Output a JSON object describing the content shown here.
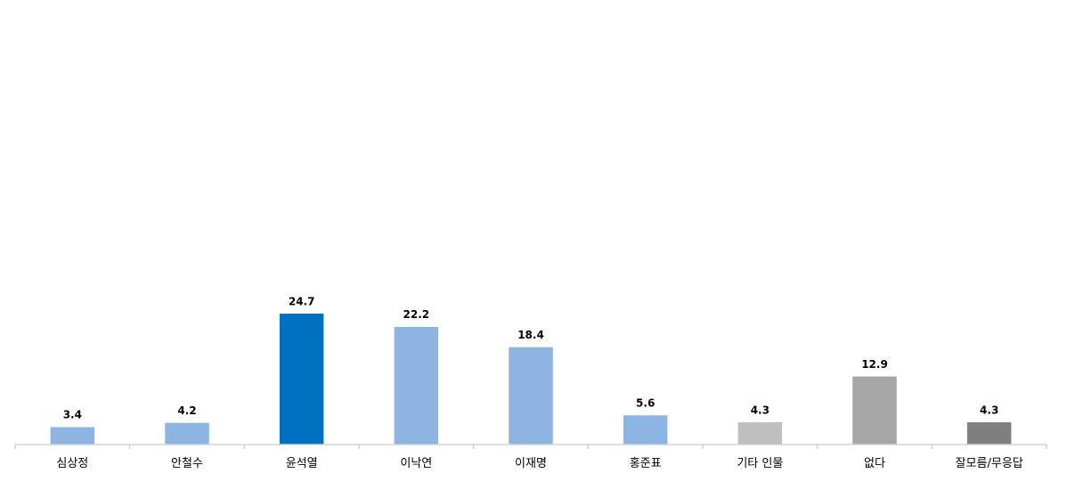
{
  "chart_data": {
    "type": "bar",
    "title": "",
    "xlabel": "",
    "ylabel": "",
    "ylim": [
      0,
      50
    ],
    "grid": false,
    "legend": "none",
    "categories": [
      "심상정",
      "안철수",
      "윤석열",
      "이낙연",
      "이재명",
      "홍준표",
      "기타 인물",
      "없다",
      "잘모름/무응답"
    ],
    "values": [
      3.4,
      4.2,
      24.7,
      22.2,
      18.4,
      5.6,
      4.3,
      12.9,
      4.3
    ],
    "value_labels": [
      "3.4",
      "4.2",
      "24.7",
      "22.2",
      "18.4",
      "5.6",
      "4.3",
      "12.9",
      "4.3"
    ],
    "colors": [
      "#8eb4e3",
      "#8eb4e3",
      "#0070c0",
      "#8eb4e3",
      "#8eb4e3",
      "#8eb4e3",
      "#bfbfbf",
      "#a6a6a6",
      "#7f7f7f"
    ]
  }
}
